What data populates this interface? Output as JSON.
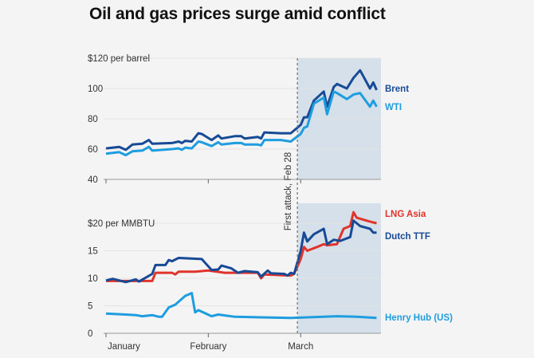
{
  "title": "Oil and gas prices surge amid conflict",
  "annotation": "First attack, Feb 28",
  "colors": {
    "shade": "#d5e0ea",
    "brent": "#174a96",
    "wti": "#1e9ddf",
    "lng": "#e0342b",
    "ttf": "#174a96",
    "henry": "#1e9ddf",
    "grid": "#e3e3e3"
  },
  "chart_data": [
    {
      "type": "line",
      "title": "",
      "ylabel": "$120 per barrel",
      "ylim": [
        40,
        120
      ],
      "yticks": [
        40,
        60,
        80,
        100
      ],
      "ytick_top_label": "$120 per barrel",
      "xlim": [
        "Jan 1",
        "Mar 24"
      ],
      "shaded_from": "Feb 28",
      "series": [
        {
          "name": "Brent",
          "color": "#174a96",
          "points": [
            [
              "Jan 1",
              60.5
            ],
            [
              "Jan 5",
              61.5
            ],
            [
              "Jan 7",
              59.5
            ],
            [
              "Jan 9",
              63
            ],
            [
              "Jan 12",
              63.5
            ],
            [
              "Jan 14",
              66
            ],
            [
              "Jan 15",
              63.5
            ],
            [
              "Jan 21",
              64
            ],
            [
              "Jan 23",
              65
            ],
            [
              "Jan 24",
              64
            ],
            [
              "Jan 25",
              65.5
            ],
            [
              "Jan 27",
              65
            ],
            [
              "Jan 29",
              70.5
            ],
            [
              "Jan 30",
              70
            ],
            [
              "Feb 2",
              66
            ],
            [
              "Feb 4",
              69
            ],
            [
              "Feb 5",
              67
            ],
            [
              "Feb 9",
              68.5
            ],
            [
              "Feb 11",
              68.5
            ],
            [
              "Feb 12",
              67
            ],
            [
              "Feb 16",
              68
            ],
            [
              "Feb 17",
              67
            ],
            [
              "Feb 18",
              71
            ],
            [
              "Feb 23",
              70.5
            ],
            [
              "Feb 26",
              70.5
            ],
            [
              "Mar 1",
              76
            ],
            [
              "Mar 2",
              81
            ],
            [
              "Mar 3",
              81
            ],
            [
              "Mar 5",
              92
            ],
            [
              "Mar 8",
              98
            ],
            [
              "Mar 9",
              88
            ],
            [
              "Mar 11",
              101
            ],
            [
              "Mar 12",
              103
            ],
            [
              "Mar 15",
              100
            ],
            [
              "Mar 17",
              107
            ],
            [
              "Mar 19",
              112
            ],
            [
              "Mar 22",
              100
            ],
            [
              "Mar 23",
              104
            ],
            [
              "Mar 24",
              99
            ]
          ]
        },
        {
          "name": "WTI",
          "color": "#1e9ddf",
          "points": [
            [
              "Jan 1",
              57
            ],
            [
              "Jan 5",
              58
            ],
            [
              "Jan 7",
              56
            ],
            [
              "Jan 9",
              58.5
            ],
            [
              "Jan 12",
              59
            ],
            [
              "Jan 14",
              61.5
            ],
            [
              "Jan 15",
              59
            ],
            [
              "Jan 21",
              60
            ],
            [
              "Jan 23",
              60.5
            ],
            [
              "Jan 24",
              59.5
            ],
            [
              "Jan 25",
              61
            ],
            [
              "Jan 27",
              60.5
            ],
            [
              "Jan 29",
              65
            ],
            [
              "Jan 30",
              64.5
            ],
            [
              "Feb 2",
              62
            ],
            [
              "Feb 4",
              64.5
            ],
            [
              "Feb 5",
              63
            ],
            [
              "Feb 9",
              64
            ],
            [
              "Feb 11",
              64
            ],
            [
              "Feb 12",
              63
            ],
            [
              "Feb 16",
              63
            ],
            [
              "Feb 17",
              62.5
            ],
            [
              "Feb 18",
              66
            ],
            [
              "Feb 23",
              66
            ],
            [
              "Feb 26",
              65
            ],
            [
              "Mar 1",
              70
            ],
            [
              "Mar 2",
              74
            ],
            [
              "Mar 3",
              75
            ],
            [
              "Mar 5",
              90
            ],
            [
              "Mar 8",
              94
            ],
            [
              "Mar 9",
              83
            ],
            [
              "Mar 11",
              98
            ],
            [
              "Mar 12",
              97
            ],
            [
              "Mar 15",
              93
            ],
            [
              "Mar 17",
              96
            ],
            [
              "Mar 19",
              97
            ],
            [
              "Mar 22",
              88
            ],
            [
              "Mar 23",
              92
            ],
            [
              "Mar 24",
              88
            ]
          ]
        }
      ]
    },
    {
      "type": "line",
      "title": "",
      "ylabel": "$20 per MMBTU",
      "ylim": [
        0,
        20
      ],
      "yticks": [
        0,
        5,
        10,
        15
      ],
      "ytick_top_label": "$20 per MMBTU",
      "xlim": [
        "Jan 1",
        "Mar 24"
      ],
      "xticks": [
        "January",
        "February",
        "March"
      ],
      "shaded_from": "Feb 28",
      "series": [
        {
          "name": "LNG Asia",
          "color": "#e0342b",
          "points": [
            [
              "Jan 1",
              9.5
            ],
            [
              "Jan 15",
              9.5
            ],
            [
              "Jan 16",
              11
            ],
            [
              "Jan 21",
              11
            ],
            [
              "Jan 22",
              10.7
            ],
            [
              "Jan 23",
              11.2
            ],
            [
              "Jan 28",
              11.2
            ],
            [
              "Feb 1",
              11.4
            ],
            [
              "Feb 6",
              11
            ],
            [
              "Feb 16",
              11
            ],
            [
              "Feb 17",
              10
            ],
            [
              "Feb 18",
              10.7
            ],
            [
              "Feb 26",
              10.5
            ],
            [
              "Feb 27",
              10.8
            ],
            [
              "Mar 1",
              13.5
            ],
            [
              "Mar 2",
              15.7
            ],
            [
              "Mar 3",
              15
            ],
            [
              "Mar 6",
              15.7
            ],
            [
              "Mar 8",
              16.2
            ],
            [
              "Mar 9",
              16
            ],
            [
              "Mar 12",
              16.2
            ],
            [
              "Mar 14",
              19
            ],
            [
              "Mar 16",
              19.5
            ],
            [
              "Mar 17",
              22
            ],
            [
              "Mar 18",
              21
            ],
            [
              "Mar 22",
              20.3
            ],
            [
              "Mar 24",
              20
            ]
          ]
        },
        {
          "name": "Dutch TTF",
          "color": "#174a96",
          "points": [
            [
              "Jan 1",
              9.6
            ],
            [
              "Jan 3",
              9.9
            ],
            [
              "Jan 7",
              9.3
            ],
            [
              "Jan 10",
              9.8
            ],
            [
              "Jan 11",
              9.4
            ],
            [
              "Jan 15",
              10.8
            ],
            [
              "Jan 16",
              12.4
            ],
            [
              "Jan 19",
              12.4
            ],
            [
              "Jan 20",
              13.3
            ],
            [
              "Jan 21",
              13.1
            ],
            [
              "Jan 23",
              13.7
            ],
            [
              "Jan 30",
              13.5
            ],
            [
              "Feb 2",
              11.5
            ],
            [
              "Feb 4",
              11.6
            ],
            [
              "Feb 5",
              12.3
            ],
            [
              "Feb 8",
              11.8
            ],
            [
              "Feb 10",
              11
            ],
            [
              "Feb 12",
              11.3
            ],
            [
              "Feb 16",
              11.1
            ],
            [
              "Feb 17",
              10.3
            ],
            [
              "Feb 19",
              11.4
            ],
            [
              "Feb 20",
              10.9
            ],
            [
              "Feb 24",
              10.8
            ],
            [
              "Feb 25",
              10.5
            ],
            [
              "Feb 26",
              11
            ],
            [
              "Feb 27",
              10.8
            ],
            [
              "Mar 1",
              15
            ],
            [
              "Mar 2",
              18.3
            ],
            [
              "Mar 3",
              16.7
            ],
            [
              "Mar 5",
              18
            ],
            [
              "Mar 8",
              19
            ],
            [
              "Mar 9",
              16.2
            ],
            [
              "Mar 11",
              17
            ],
            [
              "Mar 13",
              16.8
            ],
            [
              "Mar 16",
              17.5
            ],
            [
              "Mar 17",
              20.5
            ],
            [
              "Mar 19",
              19.5
            ],
            [
              "Mar 22",
              19
            ],
            [
              "Mar 23",
              18.3
            ],
            [
              "Mar 24",
              18.3
            ]
          ]
        },
        {
          "name": "Henry Hub (US)",
          "color": "#1e9ddf",
          "points": [
            [
              "Jan 1",
              3.6
            ],
            [
              "Jan 7",
              3.4
            ],
            [
              "Jan 10",
              3.3
            ],
            [
              "Jan 12",
              3.1
            ],
            [
              "Jan 15",
              3.3
            ],
            [
              "Jan 17",
              3
            ],
            [
              "Jan 18",
              3
            ],
            [
              "Jan 20",
              4.7
            ],
            [
              "Jan 22",
              5.2
            ],
            [
              "Jan 25",
              6.8
            ],
            [
              "Jan 27",
              7.3
            ],
            [
              "Jan 28",
              3.8
            ],
            [
              "Jan 29",
              4.2
            ],
            [
              "Feb 2",
              3.1
            ],
            [
              "Feb 4",
              3.4
            ],
            [
              "Feb 9",
              3
            ],
            [
              "Feb 17",
              2.9
            ],
            [
              "Feb 26",
              2.8
            ],
            [
              "Mar 3",
              2.9
            ],
            [
              "Mar 8",
              3
            ],
            [
              "Mar 12",
              3.1
            ],
            [
              "Mar 18",
              3
            ],
            [
              "Mar 24",
              2.8
            ]
          ]
        }
      ]
    }
  ]
}
